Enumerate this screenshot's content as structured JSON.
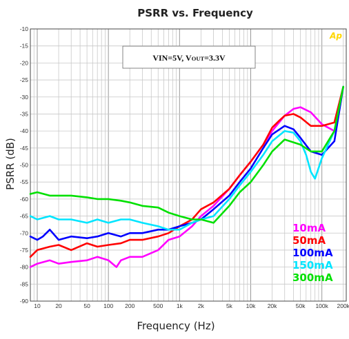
{
  "chart_data": {
    "type": "line",
    "title": "PSRR vs. Frequency",
    "xlabel": "Frequency (Hz)",
    "ylabel": "PSRR (dB)",
    "xscale": "log",
    "xlim": [
      8,
      220000
    ],
    "ylim": [
      -90,
      -10
    ],
    "grid": true,
    "legend_position": "bottom-right",
    "brand": "Ap",
    "condition_prefix": "VIN=5V, V",
    "condition_sub": "OUT",
    "condition_suffix": "=3.3V",
    "x_ticks": [
      {
        "value": 10,
        "label": "10"
      },
      {
        "value": 20,
        "label": "20"
      },
      {
        "value": 50,
        "label": "50"
      },
      {
        "value": 100,
        "label": "100"
      },
      {
        "value": 200,
        "label": "200"
      },
      {
        "value": 500,
        "label": "500"
      },
      {
        "value": 1000,
        "label": "1k"
      },
      {
        "value": 2000,
        "label": "2k"
      },
      {
        "value": 5000,
        "label": "5k"
      },
      {
        "value": 10000,
        "label": "10k"
      },
      {
        "value": 20000,
        "label": "20k"
      },
      {
        "value": 50000,
        "label": "50k"
      },
      {
        "value": 100000,
        "label": "100k"
      },
      {
        "value": 200000,
        "label": "200k"
      }
    ],
    "y_ticks": [
      {
        "value": -10,
        "label": "-10"
      },
      {
        "value": -15,
        "label": "-15"
      },
      {
        "value": -20,
        "label": "-20"
      },
      {
        "value": -25,
        "label": "-25"
      },
      {
        "value": -30,
        "label": "-30"
      },
      {
        "value": -35,
        "label": "-35"
      },
      {
        "value": -40,
        "label": "-40"
      },
      {
        "value": -45,
        "label": "-45"
      },
      {
        "value": -50,
        "label": "-50"
      },
      {
        "value": -55,
        "label": "-55"
      },
      {
        "value": -60,
        "label": "-60"
      },
      {
        "value": -65,
        "label": "-65"
      },
      {
        "value": -70,
        "label": "-70"
      },
      {
        "value": -75,
        "label": "-75"
      },
      {
        "value": -80,
        "label": "-80"
      },
      {
        "value": -85,
        "label": "-85"
      },
      {
        "value": -90,
        "label": "-90"
      }
    ],
    "series": [
      {
        "name": "10mA",
        "color": "#ff00ff",
        "x": [
          8,
          10,
          15,
          20,
          30,
          50,
          70,
          100,
          130,
          150,
          200,
          300,
          500,
          700,
          1000,
          1500,
          2000,
          3000,
          5000,
          7000,
          10000,
          15000,
          20000,
          30000,
          40000,
          50000,
          70000,
          100000,
          150000,
          200000
        ],
        "y": [
          -80,
          -79,
          -78,
          -79,
          -78.5,
          -78,
          -77,
          -78,
          -80,
          -78,
          -77,
          -77,
          -75,
          -72,
          -71,
          -68,
          -65,
          -62,
          -57,
          -53,
          -49,
          -44,
          -40,
          -35.5,
          -33.5,
          -33,
          -34.5,
          -38,
          -40,
          -27
        ]
      },
      {
        "name": "50mA",
        "color": "#ff0000",
        "x": [
          8,
          10,
          15,
          20,
          30,
          50,
          70,
          100,
          150,
          200,
          300,
          500,
          700,
          1000,
          1500,
          2000,
          3000,
          5000,
          7000,
          10000,
          15000,
          20000,
          25000,
          30000,
          40000,
          50000,
          70000,
          100000,
          150000,
          200000
        ],
        "y": [
          -77,
          -75,
          -74,
          -73.5,
          -75,
          -73,
          -74,
          -73.5,
          -73,
          -72,
          -72,
          -71,
          -70,
          -68,
          -66,
          -63,
          -61,
          -57,
          -53,
          -49,
          -44,
          -39,
          -37,
          -35.5,
          -35,
          -36,
          -38.5,
          -38.5,
          -37.5,
          -27
        ]
      },
      {
        "name": "100mA",
        "color": "#0000ff",
        "x": [
          8,
          10,
          12,
          15,
          20,
          30,
          50,
          70,
          100,
          150,
          200,
          300,
          500,
          700,
          1000,
          1500,
          2000,
          3000,
          5000,
          7000,
          10000,
          15000,
          20000,
          30000,
          40000,
          50000,
          70000,
          100000,
          150000,
          200000
        ],
        "y": [
          -71,
          -72,
          -71,
          -69,
          -72,
          -71,
          -71.5,
          -71,
          -70,
          -71,
          -70,
          -70,
          -69,
          -69,
          -68,
          -67,
          -66,
          -63,
          -59,
          -55,
          -51,
          -45,
          -41,
          -38.5,
          -39.5,
          -42,
          -46,
          -47,
          -43,
          -27
        ]
      },
      {
        "name": "150mA",
        "color": "#00e5ff",
        "x": [
          8,
          10,
          15,
          20,
          30,
          50,
          70,
          100,
          150,
          200,
          300,
          500,
          700,
          1000,
          1500,
          2000,
          3000,
          5000,
          7000,
          10000,
          15000,
          20000,
          30000,
          40000,
          50000,
          60000,
          70000,
          80000,
          100000,
          150000,
          200000
        ],
        "y": [
          -65,
          -66,
          -65,
          -66,
          -66,
          -67,
          -66,
          -67,
          -66,
          -66,
          -67,
          -68,
          -69,
          -69,
          -67,
          -66,
          -65,
          -60,
          -56,
          -52,
          -47,
          -43,
          -40,
          -40.5,
          -43,
          -47,
          -52,
          -54,
          -48,
          -40,
          -27
        ]
      },
      {
        "name": "300mA",
        "color": "#00e000",
        "x": [
          8,
          10,
          15,
          20,
          30,
          50,
          70,
          100,
          150,
          200,
          300,
          500,
          700,
          1000,
          1500,
          2000,
          3000,
          5000,
          7000,
          10000,
          15000,
          20000,
          30000,
          50000,
          70000,
          100000,
          150000,
          200000
        ],
        "y": [
          -58.5,
          -58,
          -59,
          -59,
          -59,
          -59.5,
          -60,
          -60,
          -60.5,
          -61,
          -62,
          -62.5,
          -64,
          -65,
          -66,
          -66,
          -67,
          -62,
          -58,
          -55,
          -50,
          -46,
          -42.5,
          -44,
          -46,
          -46,
          -40,
          -27
        ]
      }
    ]
  }
}
